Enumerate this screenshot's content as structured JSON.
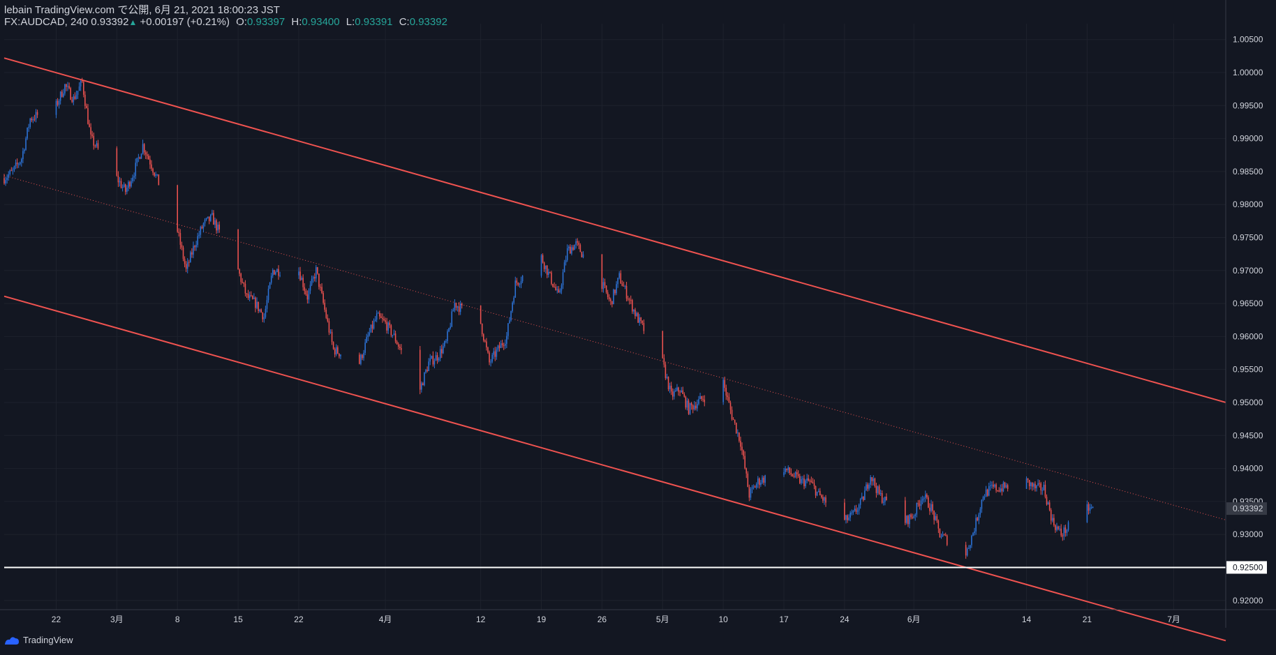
{
  "header": {
    "line1": "lebain TradingView.com で公開, 6月 21, 2021 18:00:23 JST",
    "symbol": "FX:AUDCAD, 240",
    "last": "0.93392",
    "arrow": "▲",
    "change": "+0.00197 (+0.21%)",
    "o_label": "O:",
    "o_value": "0.93397",
    "h_label": "H:",
    "h_value": "0.93400",
    "l_label": "L:",
    "l_value": "0.93391",
    "c_label": "C:",
    "c_value": "0.93392"
  },
  "footer": {
    "brand": "TradingView",
    "logo_icon": "tradingview-logo-icon"
  },
  "colors": {
    "background": "#131722",
    "up": "#2d74d9",
    "down": "#ef5350",
    "channel": "#f05350",
    "support": "#ffffff",
    "text": "#d1d4dc",
    "grid": "#1e222d"
  },
  "chart_data": {
    "type": "candlestick",
    "title": "FX:AUDCAD, 240",
    "y_ticks": [
      "1.00500",
      "1.00000",
      "0.99500",
      "0.99000",
      "0.98500",
      "0.98000",
      "0.97500",
      "0.97000",
      "0.96500",
      "0.96000",
      "0.95500",
      "0.95000",
      "0.94500",
      "0.94000",
      "0.93500",
      "0.93000",
      "0.92500",
      "0.92000"
    ],
    "x_ticks": [
      {
        "label": "22",
        "date": "2021-02-22"
      },
      {
        "label": "3月",
        "date": "2021-03-01"
      },
      {
        "label": "8",
        "date": "2021-03-08"
      },
      {
        "label": "15",
        "date": "2021-03-15"
      },
      {
        "label": "22",
        "date": "2021-03-22"
      },
      {
        "label": "4月",
        "date": "2021-04-01"
      },
      {
        "label": "12",
        "date": "2021-04-12"
      },
      {
        "label": "19",
        "date": "2021-04-19"
      },
      {
        "label": "26",
        "date": "2021-04-26"
      },
      {
        "label": "5月",
        "date": "2021-05-03"
      },
      {
        "label": "10",
        "date": "2021-05-10"
      },
      {
        "label": "17",
        "date": "2021-05-17"
      },
      {
        "label": "24",
        "date": "2021-05-24"
      },
      {
        "label": "6月",
        "date": "2021-06-01"
      },
      {
        "label": "14",
        "date": "2021-06-14"
      },
      {
        "label": "21",
        "date": "2021-06-21"
      },
      {
        "label": "7月",
        "date": "2021-07-01"
      }
    ],
    "ylim": [
      0.9186,
      1.0074
    ],
    "xlim": [
      "2021-02-16",
      "2021-07-07"
    ],
    "last_price_label": "0.93392",
    "support_label": "0.92500",
    "price_path": [
      [
        "2021-02-16",
        0.984
      ],
      [
        "2021-02-17",
        0.985
      ],
      [
        "2021-02-18",
        0.987
      ],
      [
        "2021-02-19",
        0.993
      ],
      [
        "2021-02-22",
        0.995
      ],
      [
        "2021-02-23",
        0.998
      ],
      [
        "2021-02-24",
        0.996
      ],
      [
        "2021-02-25",
        0.9985
      ],
      [
        "2021-02-26",
        0.99
      ],
      [
        "2021-03-01",
        0.984
      ],
      [
        "2021-03-02",
        0.982
      ],
      [
        "2021-03-03",
        0.985
      ],
      [
        "2021-03-04",
        0.989
      ],
      [
        "2021-03-05",
        0.986
      ],
      [
        "2021-03-08",
        0.976
      ],
      [
        "2021-03-09",
        0.97
      ],
      [
        "2021-03-10",
        0.974
      ],
      [
        "2021-03-11",
        0.977
      ],
      [
        "2021-03-12",
        0.978
      ],
      [
        "2021-03-15",
        0.97
      ],
      [
        "2021-03-16",
        0.966
      ],
      [
        "2021-03-17",
        0.965
      ],
      [
        "2021-03-18",
        0.963
      ],
      [
        "2021-03-19",
        0.97
      ],
      [
        "2021-03-22",
        0.97
      ],
      [
        "2021-03-23",
        0.966
      ],
      [
        "2021-03-24",
        0.97
      ],
      [
        "2021-03-25",
        0.964
      ],
      [
        "2021-03-26",
        0.958
      ],
      [
        "2021-03-29",
        0.956
      ],
      [
        "2021-03-30",
        0.96
      ],
      [
        "2021-03-31",
        0.963
      ],
      [
        "2021-04-01",
        0.962
      ],
      [
        "2021-04-02",
        0.96
      ],
      [
        "2021-04-05",
        0.952
      ],
      [
        "2021-04-06",
        0.956
      ],
      [
        "2021-04-07",
        0.957
      ],
      [
        "2021-04-08",
        0.959
      ],
      [
        "2021-04-09",
        0.965
      ],
      [
        "2021-04-12",
        0.962
      ],
      [
        "2021-04-13",
        0.956
      ],
      [
        "2021-04-14",
        0.958
      ],
      [
        "2021-04-15",
        0.96
      ],
      [
        "2021-04-16",
        0.968
      ],
      [
        "2021-04-19",
        0.972
      ],
      [
        "2021-04-20",
        0.969
      ],
      [
        "2021-04-21",
        0.966
      ],
      [
        "2021-04-22",
        0.973
      ],
      [
        "2021-04-23",
        0.974
      ],
      [
        "2021-04-26",
        0.968
      ],
      [
        "2021-04-27",
        0.965
      ],
      [
        "2021-04-28",
        0.969
      ],
      [
        "2021-04-29",
        0.966
      ],
      [
        "2021-04-30",
        0.963
      ],
      [
        "2021-05-03",
        0.956
      ],
      [
        "2021-05-04",
        0.951
      ],
      [
        "2021-05-05",
        0.952
      ],
      [
        "2021-05-06",
        0.949
      ],
      [
        "2021-05-07",
        0.95
      ],
      [
        "2021-05-10",
        0.953
      ],
      [
        "2021-05-11",
        0.948
      ],
      [
        "2021-05-12",
        0.944
      ],
      [
        "2021-05-13",
        0.936
      ],
      [
        "2021-05-14",
        0.938
      ],
      [
        "2021-05-17",
        0.94
      ],
      [
        "2021-05-18",
        0.939
      ],
      [
        "2021-05-19",
        0.938
      ],
      [
        "2021-05-20",
        0.938
      ],
      [
        "2021-05-21",
        0.936
      ],
      [
        "2021-05-24",
        0.932
      ],
      [
        "2021-05-25",
        0.933
      ],
      [
        "2021-05-26",
        0.935
      ],
      [
        "2021-05-27",
        0.939
      ],
      [
        "2021-05-28",
        0.936
      ],
      [
        "2021-05-31",
        0.932
      ],
      [
        "2021-06-01",
        0.933
      ],
      [
        "2021-06-02",
        0.936
      ],
      [
        "2021-06-03",
        0.934
      ],
      [
        "2021-06-04",
        0.93
      ],
      [
        "2021-06-07",
        0.927
      ],
      [
        "2021-06-08",
        0.931
      ],
      [
        "2021-06-09",
        0.936
      ],
      [
        "2021-06-10",
        0.937
      ],
      [
        "2021-06-11",
        0.937
      ],
      [
        "2021-06-14",
        0.938
      ],
      [
        "2021-06-15",
        0.937
      ],
      [
        "2021-06-16",
        0.937
      ],
      [
        "2021-06-17",
        0.932
      ],
      [
        "2021-06-18",
        0.93
      ],
      [
        "2021-06-21",
        0.9339
      ]
    ],
    "drawings": {
      "channel_upper": [
        [
          "2021-02-16",
          1.0022
        ],
        [
          "2021-07-07",
          0.95
        ]
      ],
      "channel_mid": [
        [
          "2021-02-16",
          0.9844
        ],
        [
          "2021-07-07",
          0.9322
        ]
      ],
      "channel_lower": [
        [
          "2021-02-16",
          0.9661
        ],
        [
          "2021-07-07",
          0.9139
        ]
      ],
      "support": 0.925
    }
  }
}
